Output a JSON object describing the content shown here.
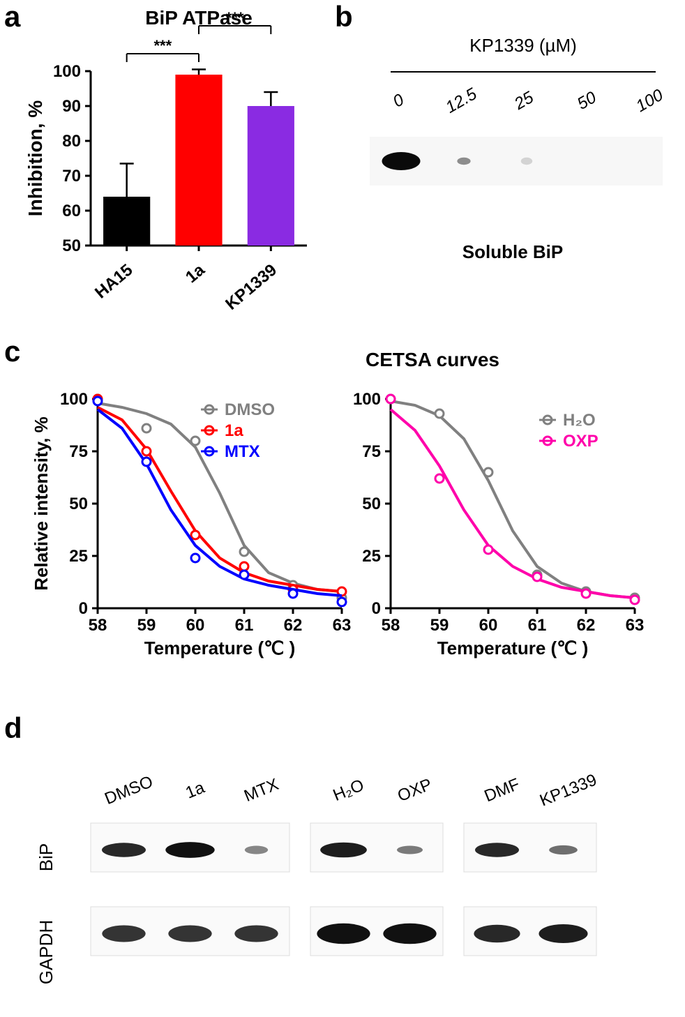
{
  "panel_labels": {
    "a": "a",
    "b": "b",
    "c": "c",
    "d": "d"
  },
  "panel_a": {
    "title": "BiP ATPase",
    "title_fontsize": 28,
    "ylabel": "Inhibition, %",
    "label_fontsize": 28,
    "ylim": [
      50,
      100
    ],
    "ytick_step": 10,
    "yticks": [
      50,
      60,
      70,
      80,
      90,
      100
    ],
    "categories": [
      "HA15",
      "1a",
      "KP1339"
    ],
    "values": [
      64,
      99,
      90
    ],
    "errors": [
      9.5,
      1.5,
      4
    ],
    "bar_colors": [
      "#000000",
      "#ff0000",
      "#8a2be2"
    ],
    "bar_width": 0.65,
    "axis_color": "#000000",
    "axis_width": 3,
    "tick_fontsize": 24,
    "sig_markers": [
      {
        "from": 0,
        "to": 1,
        "label": "***",
        "y": 105
      },
      {
        "from": 1,
        "to": 2,
        "label": "***",
        "y": 113
      }
    ]
  },
  "panel_b": {
    "header": "KP1339 (µM)",
    "concentrations": [
      "0",
      "12.5",
      "25",
      "50",
      "100"
    ],
    "header_fontsize": 26,
    "conc_fontsize": 24,
    "caption": "Soluble BiP",
    "caption_fontsize": 26,
    "band_bg": "#f7f7f7",
    "band_intensities": [
      1.0,
      0.35,
      0.05,
      0.0,
      0.0
    ],
    "band_color": "#0a0a0a"
  },
  "panel_c": {
    "title": "CETSA curves",
    "title_fontsize": 28,
    "ylabel": "Relative intensity, %",
    "xlabel_left": "Temperature (℃ )",
    "xlabel_right": "Temperature (℃ )",
    "label_fontsize": 26,
    "xlim": [
      58,
      63
    ],
    "ylim": [
      0,
      100
    ],
    "xticks": [
      58,
      59,
      60,
      61,
      62,
      63
    ],
    "yticks": [
      0,
      25,
      50,
      75,
      100
    ],
    "tick_fontsize": 24,
    "axis_color": "#000000",
    "axis_width": 3,
    "marker_r": 6,
    "marker_stroke_w": 3,
    "line_width": 4,
    "left": {
      "series": [
        {
          "name": "DMSO",
          "color": "#808080",
          "points": [
            [
              58,
              100
            ],
            [
              59,
              86
            ],
            [
              60,
              80
            ],
            [
              61,
              27
            ],
            [
              62,
              11
            ],
            [
              63,
              5
            ]
          ],
          "curve": [
            [
              58,
              98
            ],
            [
              58.5,
              96
            ],
            [
              59,
              93
            ],
            [
              59.5,
              88
            ],
            [
              60,
              77
            ],
            [
              60.5,
              55
            ],
            [
              61,
              30
            ],
            [
              61.5,
              17
            ],
            [
              62,
              12
            ],
            [
              62.5,
              9
            ],
            [
              63,
              8
            ]
          ]
        },
        {
          "name": "1a",
          "color": "#ff0000",
          "points": [
            [
              58,
              100
            ],
            [
              59,
              75
            ],
            [
              60,
              35
            ],
            [
              61,
              20
            ],
            [
              62,
              9
            ],
            [
              63,
              8
            ]
          ],
          "curve": [
            [
              58,
              96
            ],
            [
              58.5,
              90
            ],
            [
              59,
              76
            ],
            [
              59.5,
              56
            ],
            [
              60,
              37
            ],
            [
              60.5,
              24
            ],
            [
              61,
              17
            ],
            [
              61.5,
              13
            ],
            [
              62,
              11
            ],
            [
              62.5,
              9
            ],
            [
              63,
              8
            ]
          ]
        },
        {
          "name": "MTX",
          "color": "#0000ff",
          "points": [
            [
              58,
              99
            ],
            [
              59,
              70
            ],
            [
              60,
              24
            ],
            [
              61,
              16
            ],
            [
              62,
              7
            ],
            [
              63,
              3
            ]
          ],
          "curve": [
            [
              58,
              95
            ],
            [
              58.5,
              86
            ],
            [
              59,
              69
            ],
            [
              59.5,
              47
            ],
            [
              60,
              30
            ],
            [
              60.5,
              20
            ],
            [
              61,
              14
            ],
            [
              61.5,
              11
            ],
            [
              62,
              9
            ],
            [
              62.5,
              7
            ],
            [
              63,
              6
            ]
          ]
        }
      ]
    },
    "right": {
      "series": [
        {
          "name": "H₂O",
          "color": "#808080",
          "points": [
            [
              58,
              100
            ],
            [
              59,
              93
            ],
            [
              60,
              65
            ],
            [
              61,
              16
            ],
            [
              62,
              8
            ],
            [
              63,
              5
            ]
          ],
          "curve": [
            [
              58,
              99
            ],
            [
              58.5,
              97
            ],
            [
              59,
              92
            ],
            [
              59.5,
              81
            ],
            [
              60,
              61
            ],
            [
              60.5,
              37
            ],
            [
              61,
              20
            ],
            [
              61.5,
              12
            ],
            [
              62,
              8
            ],
            [
              62.5,
              6
            ],
            [
              63,
              5
            ]
          ]
        },
        {
          "name": "OXP",
          "color": "#ff00aa",
          "points": [
            [
              58,
              100
            ],
            [
              59,
              62
            ],
            [
              60,
              28
            ],
            [
              61,
              15
            ],
            [
              62,
              7
            ],
            [
              63,
              4
            ]
          ],
          "curve": [
            [
              58,
              95
            ],
            [
              58.5,
              85
            ],
            [
              59,
              68
            ],
            [
              59.5,
              47
            ],
            [
              60,
              30
            ],
            [
              60.5,
              20
            ],
            [
              61,
              14
            ],
            [
              61.5,
              10
            ],
            [
              62,
              8
            ],
            [
              62.5,
              6
            ],
            [
              63,
              5
            ]
          ]
        }
      ]
    },
    "legend_left": [
      {
        "label": "DMSO",
        "color": "#808080"
      },
      {
        "label": "1a",
        "color": "#ff0000"
      },
      {
        "label": "MTX",
        "color": "#0000ff"
      }
    ],
    "legend_right": [
      {
        "label": "H₂O",
        "color": "#808080"
      },
      {
        "label": "OXP",
        "color": "#ff00aa"
      }
    ]
  },
  "panel_d": {
    "row_labels": [
      "BiP",
      "GAPDH"
    ],
    "row_label_fontsize": 26,
    "groups": [
      {
        "labels": [
          "DMSO",
          "1a",
          "MTX"
        ],
        "bip": [
          0.85,
          0.95,
          0.45
        ],
        "gapdh": [
          0.8,
          0.8,
          0.8
        ]
      },
      {
        "labels": [
          "H₂O",
          "OXP"
        ],
        "bip": [
          0.9,
          0.5
        ],
        "gapdh": [
          0.98,
          0.98
        ]
      },
      {
        "labels": [
          "DMF",
          "KP1339"
        ],
        "bip": [
          0.85,
          0.55
        ],
        "gapdh": [
          0.85,
          0.9
        ]
      }
    ],
    "label_fontsize": 24,
    "band_bg": "#fafafa",
    "band_color": "#111111"
  }
}
